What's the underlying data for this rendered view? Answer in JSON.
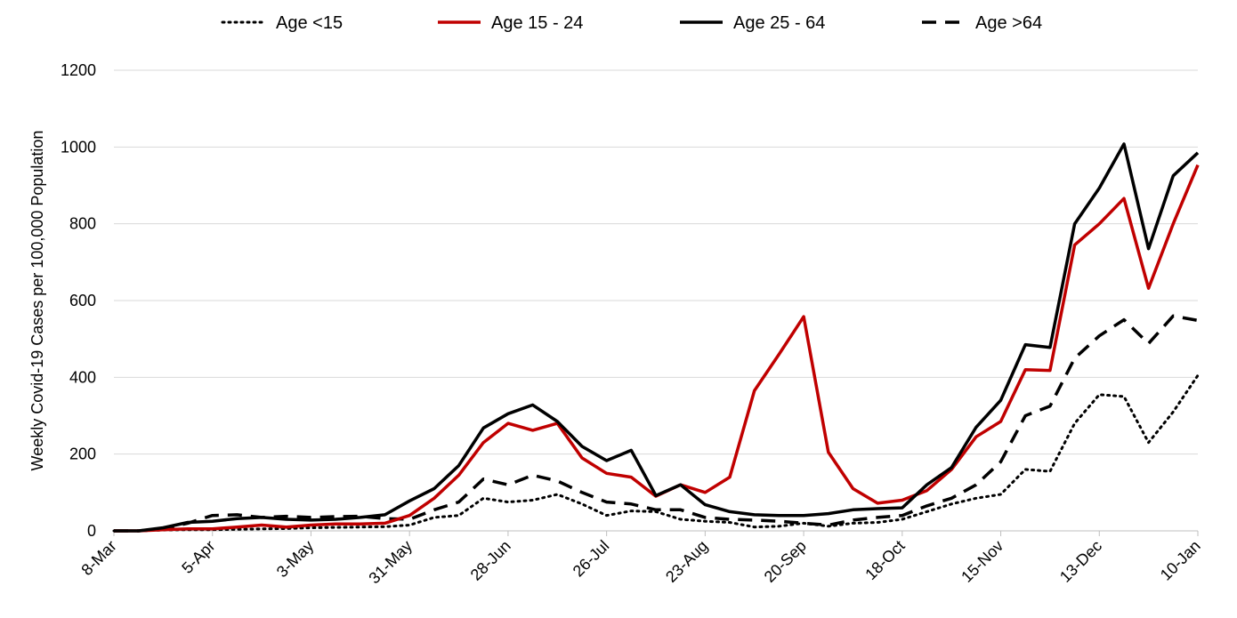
{
  "chart_data": {
    "type": "line",
    "title": "",
    "xlabel": "",
    "ylabel": "Weekly Covid-19 Cases per 100,000 Population",
    "ylim": [
      0,
      1200
    ],
    "yticks": [
      0,
      200,
      400,
      600,
      800,
      1000,
      1200
    ],
    "grid": "horizontal",
    "legend_position": "top",
    "x": [
      "8-Mar",
      "15-Mar",
      "22-Mar",
      "29-Mar",
      "5-Apr",
      "12-Apr",
      "19-Apr",
      "26-Apr",
      "3-May",
      "10-May",
      "17-May",
      "24-May",
      "31-May",
      "7-Jun",
      "14-Jun",
      "21-Jun",
      "28-Jun",
      "5-Jul",
      "12-Jul",
      "19-Jul",
      "26-Jul",
      "2-Aug",
      "9-Aug",
      "16-Aug",
      "23-Aug",
      "30-Aug",
      "6-Sep",
      "13-Sep",
      "20-Sep",
      "27-Sep",
      "4-Oct",
      "11-Oct",
      "18-Oct",
      "25-Oct",
      "1-Nov",
      "8-Nov",
      "15-Nov",
      "22-Nov",
      "29-Nov",
      "6-Dec",
      "13-Dec",
      "20-Dec",
      "27-Dec",
      "3-Jan",
      "10-Jan"
    ],
    "xtick_labels": [
      "8-Mar",
      "5-Apr",
      "3-May",
      "31-May",
      "28-Jun",
      "26-Jul",
      "23-Aug",
      "20-Sep",
      "18-Oct",
      "15-Nov",
      "13-Dec",
      "10-Jan"
    ],
    "series": [
      {
        "name": "Age <15",
        "color": "#000000",
        "style": "dotted",
        "values": [
          0,
          0,
          2,
          3,
          3,
          4,
          5,
          6,
          8,
          9,
          10,
          11,
          15,
          35,
          40,
          85,
          75,
          80,
          95,
          70,
          40,
          52,
          50,
          30,
          25,
          22,
          10,
          12,
          20,
          12,
          20,
          22,
          30,
          50,
          70,
          85,
          95,
          160,
          155,
          280,
          355,
          350,
          230,
          310,
          405
        ]
      },
      {
        "name": "Age 15 - 24",
        "color": "#c00000",
        "style": "solid",
        "values": [
          0,
          0,
          3,
          5,
          5,
          10,
          15,
          10,
          15,
          18,
          18,
          20,
          40,
          85,
          145,
          230,
          280,
          262,
          280,
          190,
          150,
          140,
          90,
          120,
          100,
          140,
          365,
          460,
          558,
          205,
          110,
          72,
          80,
          105,
          160,
          245,
          285,
          420,
          418,
          745,
          800,
          866,
          632,
          800,
          953
        ]
      },
      {
        "name": "Age 25 - 64",
        "color": "#000000",
        "style": "solid",
        "values": [
          0,
          0,
          8,
          22,
          25,
          32,
          35,
          30,
          28,
          30,
          35,
          42,
          78,
          110,
          170,
          268,
          305,
          328,
          285,
          220,
          183,
          210,
          92,
          120,
          68,
          50,
          42,
          40,
          40,
          45,
          55,
          58,
          60,
          120,
          165,
          270,
          340,
          485,
          478,
          800,
          893,
          1008,
          735,
          925,
          985
        ]
      },
      {
        "name": "Age >64",
        "color": "#000000",
        "style": "dashed",
        "values": [
          0,
          0,
          5,
          20,
          40,
          42,
          35,
          38,
          35,
          37,
          38,
          32,
          30,
          55,
          75,
          135,
          120,
          145,
          130,
          100,
          75,
          70,
          55,
          55,
          35,
          30,
          28,
          25,
          20,
          15,
          28,
          35,
          40,
          65,
          85,
          120,
          180,
          300,
          325,
          450,
          508,
          550,
          488,
          560,
          548
        ]
      }
    ]
  }
}
